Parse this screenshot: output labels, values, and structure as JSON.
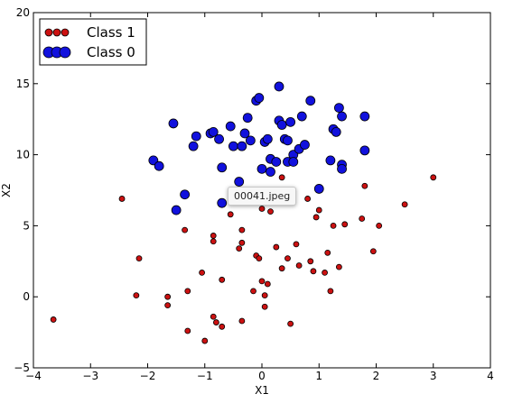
{
  "tooltip": {
    "text": "00041.jpeg"
  },
  "colors": {
    "class1": "#cc1111",
    "class0": "#1111dd",
    "edge": "#000000"
  },
  "chart_data": {
    "type": "scatter",
    "title": "",
    "xlabel": "X1",
    "ylabel": "X2",
    "xlim": [
      -4,
      4
    ],
    "ylim": [
      -5,
      20
    ],
    "xticks": [
      -4,
      -3,
      -2,
      -1,
      0,
      1,
      2,
      3,
      4
    ],
    "yticks": [
      -5,
      0,
      5,
      10,
      15,
      20
    ],
    "xtick_labels": [
      "−4",
      "−3",
      "−2",
      "−1",
      "0",
      "1",
      "2",
      "3",
      "4"
    ],
    "ytick_labels": [
      "−5",
      "0",
      "5",
      "10",
      "15",
      "20"
    ],
    "grid": false,
    "legend": "top-left",
    "series": [
      {
        "name": "Class 1",
        "color": "#cc1111",
        "marker_size": "small",
        "points": [
          [
            -3.65,
            -1.6
          ],
          [
            -2.45,
            6.9
          ],
          [
            -2.15,
            2.7
          ],
          [
            -2.2,
            0.1
          ],
          [
            -1.65,
            0.0
          ],
          [
            -1.65,
            -0.6
          ],
          [
            -1.35,
            4.7
          ],
          [
            -1.3,
            0.4
          ],
          [
            -1.3,
            -2.4
          ],
          [
            -1.05,
            1.7
          ],
          [
            -1.0,
            -3.1
          ],
          [
            -0.85,
            4.3
          ],
          [
            -0.85,
            3.9
          ],
          [
            -0.85,
            -1.4
          ],
          [
            -0.8,
            -1.8
          ],
          [
            -0.7,
            1.2
          ],
          [
            -0.7,
            -2.1
          ],
          [
            -0.55,
            5.8
          ],
          [
            -0.4,
            3.4
          ],
          [
            -0.35,
            4.7
          ],
          [
            -0.35,
            3.8
          ],
          [
            -0.35,
            -1.7
          ],
          [
            -0.15,
            0.4
          ],
          [
            -0.1,
            2.9
          ],
          [
            -0.05,
            2.7
          ],
          [
            0.0,
            6.2
          ],
          [
            0.0,
            1.1
          ],
          [
            0.05,
            0.1
          ],
          [
            0.05,
            -0.7
          ],
          [
            0.1,
            0.9
          ],
          [
            0.15,
            6.0
          ],
          [
            0.25,
            3.5
          ],
          [
            0.35,
            8.4
          ],
          [
            0.35,
            2.0
          ],
          [
            0.45,
            2.7
          ],
          [
            0.5,
            -1.9
          ],
          [
            0.6,
            3.7
          ],
          [
            0.65,
            2.2
          ],
          [
            0.8,
            6.9
          ],
          [
            0.85,
            2.5
          ],
          [
            0.9,
            1.8
          ],
          [
            0.95,
            5.6
          ],
          [
            1.0,
            6.1
          ],
          [
            1.1,
            1.7
          ],
          [
            1.15,
            3.1
          ],
          [
            1.2,
            0.4
          ],
          [
            1.25,
            5.0
          ],
          [
            1.35,
            2.1
          ],
          [
            1.45,
            5.1
          ],
          [
            1.75,
            5.5
          ],
          [
            1.8,
            7.8
          ],
          [
            1.95,
            3.2
          ],
          [
            2.05,
            5.0
          ],
          [
            2.5,
            6.5
          ],
          [
            3.0,
            8.4
          ]
        ]
      },
      {
        "name": "Class 0",
        "color": "#1111dd",
        "marker_size": "large",
        "points": [
          [
            -1.9,
            9.6
          ],
          [
            -1.8,
            9.2
          ],
          [
            -1.55,
            12.2
          ],
          [
            -1.5,
            6.1
          ],
          [
            -1.35,
            7.2
          ],
          [
            -1.2,
            10.6
          ],
          [
            -1.15,
            11.3
          ],
          [
            -0.9,
            11.5
          ],
          [
            -0.85,
            11.6
          ],
          [
            -0.75,
            11.1
          ],
          [
            -0.7,
            9.1
          ],
          [
            -0.7,
            6.6
          ],
          [
            -0.55,
            12.0
          ],
          [
            -0.5,
            10.6
          ],
          [
            -0.4,
            8.1
          ],
          [
            -0.35,
            10.6
          ],
          [
            -0.3,
            11.5
          ],
          [
            -0.25,
            12.6
          ],
          [
            -0.2,
            11.0
          ],
          [
            -0.1,
            13.8
          ],
          [
            -0.05,
            14.0
          ],
          [
            0.0,
            9.0
          ],
          [
            0.05,
            10.9
          ],
          [
            0.1,
            11.1
          ],
          [
            0.15,
            9.7
          ],
          [
            0.15,
            8.8
          ],
          [
            0.25,
            9.5
          ],
          [
            0.3,
            14.8
          ],
          [
            0.3,
            12.4
          ],
          [
            0.35,
            12.1
          ],
          [
            0.4,
            11.1
          ],
          [
            0.45,
            11.0
          ],
          [
            0.45,
            9.5
          ],
          [
            0.5,
            12.3
          ],
          [
            0.55,
            10.0
          ],
          [
            0.55,
            9.5
          ],
          [
            0.65,
            10.4
          ],
          [
            0.7,
            12.7
          ],
          [
            0.75,
            10.7
          ],
          [
            0.85,
            13.8
          ],
          [
            1.0,
            7.6
          ],
          [
            1.2,
            9.6
          ],
          [
            1.25,
            11.8
          ],
          [
            1.3,
            11.6
          ],
          [
            1.35,
            13.3
          ],
          [
            1.4,
            12.7
          ],
          [
            1.4,
            9.3
          ],
          [
            1.4,
            9.0
          ],
          [
            1.8,
            12.7
          ],
          [
            1.8,
            10.3
          ]
        ]
      }
    ]
  }
}
